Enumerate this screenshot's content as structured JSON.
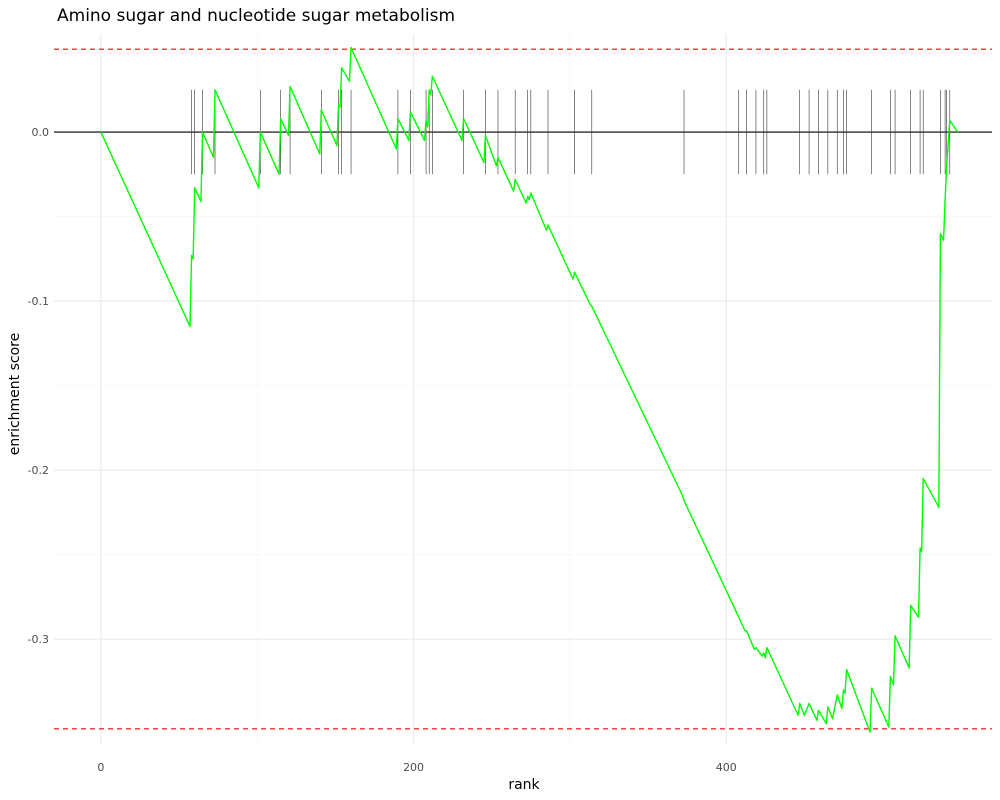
{
  "chart_data": {
    "type": "line",
    "title": "Amino sugar and nucleotide sugar metabolism",
    "xlabel": "rank",
    "ylabel": "enrichment score",
    "xlim": [
      -30,
      570
    ],
    "ylim": [
      -0.362,
      0.058
    ],
    "x_ticks": [
      0,
      200,
      400
    ],
    "y_ticks": [
      -0.3,
      -0.2,
      -0.1,
      0.0
    ],
    "x_tick_labels": [
      "0",
      "200",
      "400"
    ],
    "y_tick_labels": [
      "-0.3",
      "-0.2",
      "-0.1",
      "0.0"
    ],
    "grid": true,
    "zero_line": 0.0,
    "threshold_lines": [
      0.049,
      -0.353
    ],
    "hit_marks": {
      "y_top": 0.025,
      "y_bottom": -0.025
    },
    "hits": [
      58,
      60,
      65,
      73,
      102,
      115,
      121,
      141,
      152,
      154,
      160,
      190,
      198,
      208,
      210,
      212,
      232,
      246,
      254,
      265,
      273,
      275,
      286,
      303,
      314,
      373,
      408,
      413,
      419,
      424,
      426,
      447,
      453,
      459,
      465,
      471,
      475,
      477,
      493,
      505,
      508,
      518,
      524,
      526,
      537,
      540,
      541,
      543
    ],
    "series": [
      {
        "color": "#00ff00",
        "points": [
          [
            0,
            0.0
          ],
          [
            57,
            -0.115
          ],
          [
            58,
            -0.073
          ],
          [
            59,
            -0.075
          ],
          [
            60,
            -0.033
          ],
          [
            64,
            -0.041
          ],
          [
            65,
            0.0
          ],
          [
            72,
            -0.015
          ],
          [
            73,
            0.025
          ],
          [
            101,
            -0.033
          ],
          [
            102,
            0.0
          ],
          [
            114,
            -0.025
          ],
          [
            115,
            0.008
          ],
          [
            120,
            -0.002
          ],
          [
            121,
            0.027
          ],
          [
            140,
            -0.013
          ],
          [
            141,
            0.013
          ],
          [
            151,
            -0.008
          ],
          [
            152,
            0.016
          ],
          [
            153,
            0.015
          ],
          [
            154,
            0.038
          ],
          [
            159,
            0.03
          ],
          [
            160,
            0.05
          ],
          [
            189,
            -0.01
          ],
          [
            190,
            0.008
          ],
          [
            197,
            -0.005
          ],
          [
            198,
            0.012
          ],
          [
            207,
            -0.005
          ],
          [
            208,
            0.007
          ],
          [
            209,
            0.003
          ],
          [
            210,
            0.025
          ],
          [
            211,
            0.022
          ],
          [
            212,
            0.033
          ],
          [
            231,
            -0.005
          ],
          [
            232,
            0.008
          ],
          [
            245,
            -0.018
          ],
          [
            246,
            -0.002
          ],
          [
            253,
            -0.02
          ],
          [
            254,
            -0.015
          ],
          [
            264,
            -0.035
          ],
          [
            265,
            -0.028
          ],
          [
            272,
            -0.042
          ],
          [
            273,
            -0.038
          ],
          [
            274,
            -0.04
          ],
          [
            275,
            -0.036
          ],
          [
            285,
            -0.058
          ],
          [
            286,
            -0.055
          ],
          [
            302,
            -0.087
          ],
          [
            303,
            -0.083
          ],
          [
            313,
            -0.102
          ],
          [
            314,
            -0.103
          ],
          [
            372,
            -0.215
          ],
          [
            373,
            -0.218
          ],
          [
            407,
            -0.285
          ],
          [
            408,
            -0.287
          ],
          [
            412,
            -0.295
          ],
          [
            413,
            -0.295
          ],
          [
            418,
            -0.306
          ],
          [
            419,
            -0.305
          ],
          [
            423,
            -0.31
          ],
          [
            424,
            -0.308
          ],
          [
            425,
            -0.311
          ],
          [
            426,
            -0.305
          ],
          [
            446,
            -0.345
          ],
          [
            447,
            -0.338
          ],
          [
            450,
            -0.345
          ],
          [
            453,
            -0.338
          ],
          [
            458,
            -0.348
          ],
          [
            459,
            -0.342
          ],
          [
            464,
            -0.35
          ],
          [
            465,
            -0.34
          ],
          [
            468,
            -0.347
          ],
          [
            471,
            -0.333
          ],
          [
            474,
            -0.341
          ],
          [
            475,
            -0.33
          ],
          [
            476,
            -0.332
          ],
          [
            477,
            -0.318
          ],
          [
            492,
            -0.355
          ],
          [
            493,
            -0.329
          ],
          [
            504,
            -0.352
          ],
          [
            505,
            -0.322
          ],
          [
            507,
            -0.327
          ],
          [
            508,
            -0.298
          ],
          [
            517,
            -0.317
          ],
          [
            518,
            -0.28
          ],
          [
            523,
            -0.287
          ],
          [
            524,
            -0.246
          ],
          [
            525,
            -0.248
          ],
          [
            526,
            -0.205
          ],
          [
            536,
            -0.222
          ],
          [
            537,
            -0.06
          ],
          [
            539,
            -0.064
          ],
          [
            540,
            -0.04
          ],
          [
            541,
            -0.02
          ],
          [
            543,
            0.007
          ],
          [
            548,
            0.0
          ]
        ]
      }
    ]
  }
}
